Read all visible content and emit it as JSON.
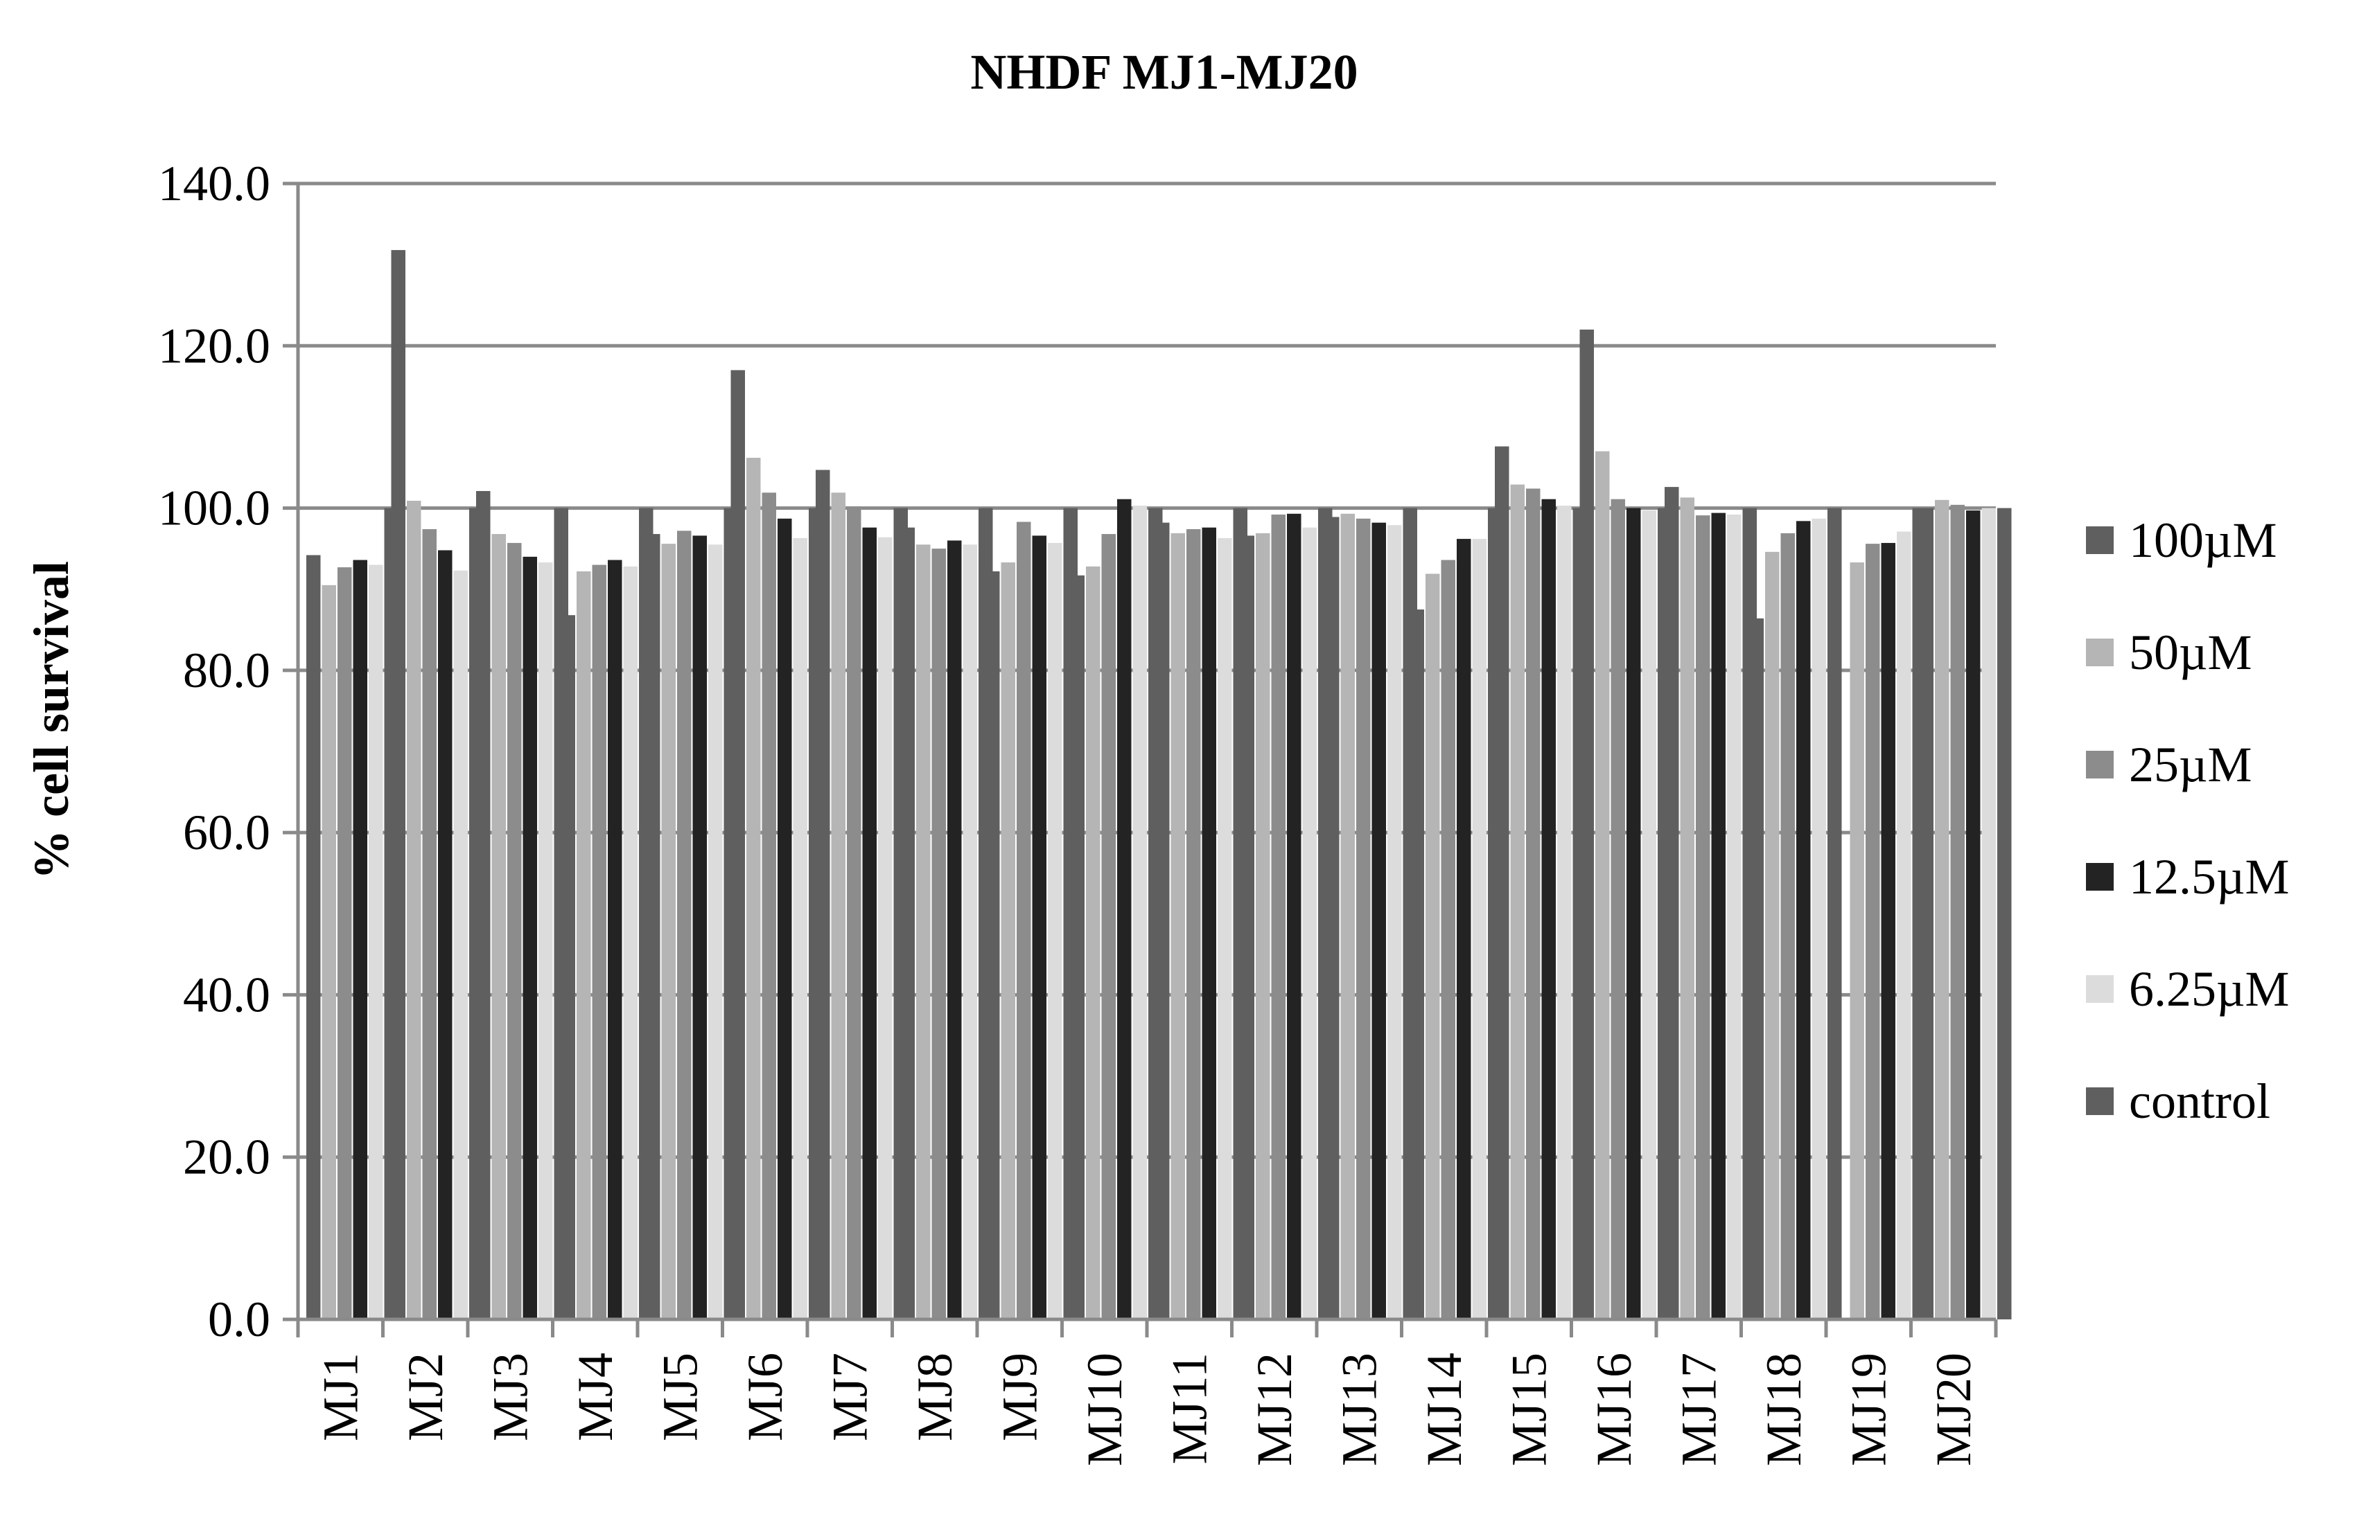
{
  "chart_data": {
    "type": "bar",
    "title": "NHDF MJ1-MJ20",
    "xlabel": "",
    "ylabel": "% cell survival",
    "ylim": [
      0,
      140
    ],
    "yticks": [
      "0.0",
      "20.0",
      "40.0",
      "60.0",
      "80.0",
      "100.0",
      "120.0",
      "140.0"
    ],
    "grid": true,
    "legend_position": "right",
    "categories": [
      "MJ1",
      "MJ2",
      "MJ3",
      "MJ4",
      "MJ5",
      "MJ6",
      "MJ7",
      "MJ8",
      "MJ9",
      "MJ10",
      "MJ11",
      "MJ12",
      "MJ13",
      "MJ14",
      "MJ15",
      "MJ16",
      "MJ17",
      "MJ18",
      "MJ19",
      "MJ20"
    ],
    "series": [
      {
        "name": "100µM",
        "color": "#5f5f5f",
        "values": [
          94.2,
          131.8,
          102.1,
          86.8,
          96.8,
          117.0,
          104.7,
          97.6,
          92.2,
          91.7,
          98.2,
          96.6,
          98.9,
          87.5,
          107.6,
          122.0,
          102.6,
          86.4,
          0.0,
          100.0
        ]
      },
      {
        "name": "50µM",
        "color": "#b5b5b5",
        "values": [
          90.5,
          100.9,
          96.8,
          92.2,
          95.6,
          106.2,
          101.9,
          95.5,
          93.3,
          92.8,
          96.9,
          96.9,
          99.3,
          91.9,
          102.9,
          107.0,
          101.3,
          94.6,
          93.3,
          101.0
        ]
      },
      {
        "name": "25µM",
        "color": "#8c8c8c",
        "values": [
          92.7,
          97.4,
          95.7,
          93.0,
          97.2,
          101.9,
          100.2,
          95.0,
          98.3,
          96.8,
          97.4,
          99.2,
          98.7,
          93.6,
          102.4,
          101.1,
          99.1,
          96.9,
          95.6,
          100.4
        ]
      },
      {
        "name": "12.5µM",
        "color": "#232323",
        "values": [
          93.6,
          94.8,
          94.0,
          93.6,
          96.6,
          98.7,
          97.6,
          96.0,
          96.6,
          101.1,
          97.6,
          99.3,
          98.2,
          96.2,
          101.1,
          100.0,
          99.4,
          98.4,
          95.7,
          99.7
        ]
      },
      {
        "name": "6.25µM",
        "color": "#dcdcdc",
        "values": [
          93.0,
          92.3,
          93.3,
          92.8,
          95.5,
          96.3,
          96.4,
          95.5,
          95.7,
          100.3,
          96.3,
          97.6,
          97.9,
          96.2,
          100.3,
          99.7,
          99.2,
          98.7,
          97.1,
          100.0
        ]
      },
      {
        "name": "control",
        "color": "#5f5f5f",
        "values": [
          100,
          100,
          100,
          100,
          100,
          100,
          100,
          100,
          100,
          100,
          100,
          100,
          100,
          100,
          100,
          100,
          100,
          100,
          100,
          100
        ]
      }
    ]
  }
}
